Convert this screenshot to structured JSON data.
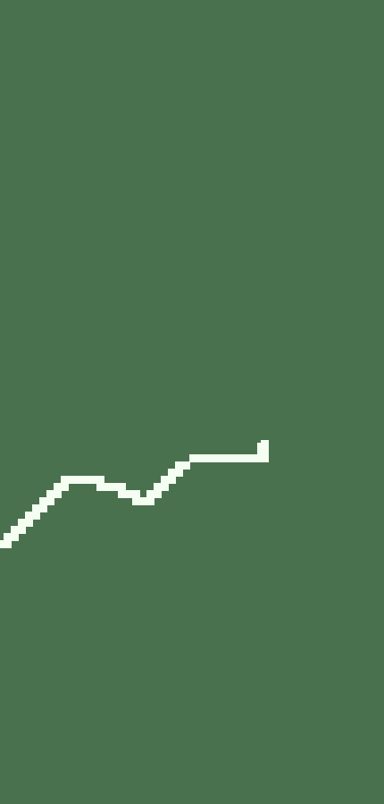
{
  "scene": {
    "background_color": "#4a714e",
    "trail_color": "#f4fff2",
    "trail_shape": "pixelated-line"
  }
}
